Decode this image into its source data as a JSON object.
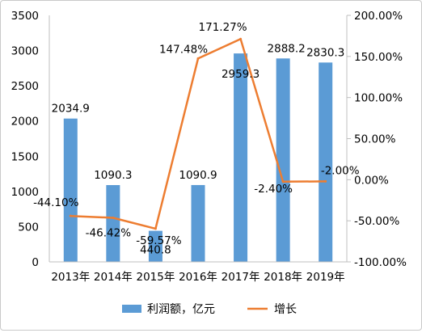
{
  "chart_data": {
    "type": "bar+line",
    "categories": [
      "2013年",
      "2014年",
      "2015年",
      "2016年",
      "2017年",
      "2018年",
      "2019年"
    ],
    "series": [
      {
        "name": "利润额，亿元",
        "type": "bar",
        "axis": "left",
        "color": "#5b9bd5",
        "values": [
          2034.9,
          1090.3,
          440.8,
          1090.9,
          2959.3,
          2888.2,
          2830.3
        ],
        "labels": [
          "2034.9",
          "1090.3",
          "440.8",
          "1090.9",
          "2959.3",
          "2888.2",
          "2830.3"
        ]
      },
      {
        "name": "增长",
        "type": "line",
        "axis": "right",
        "color": "#ed7d31",
        "values": [
          -44.1,
          -46.42,
          -59.57,
          147.48,
          171.27,
          -2.4,
          -2.0
        ],
        "labels": [
          "-44.10%",
          "-46.42%",
          "-59.57%",
          "147.48%",
          "171.27%",
          "-2.40%",
          "-2.00%"
        ]
      }
    ],
    "y_left": {
      "range": [
        0,
        3500
      ],
      "ticks": [
        0,
        500,
        1000,
        1500,
        2000,
        2500,
        3000,
        3500
      ],
      "tick_labels": [
        "0",
        "500",
        "1000",
        "1500",
        "2000",
        "2500",
        "3000",
        "3500"
      ]
    },
    "y_right": {
      "unit": "%",
      "range": [
        -100,
        200
      ],
      "ticks": [
        -100,
        -50,
        0,
        50,
        100,
        150,
        200
      ],
      "tick_labels": [
        "-100.00%",
        "-50.00%",
        "0.00%",
        "50.00%",
        "100.00%",
        "150.00%",
        "200.00%"
      ]
    },
    "grid": false,
    "legend_position": "bottom"
  }
}
